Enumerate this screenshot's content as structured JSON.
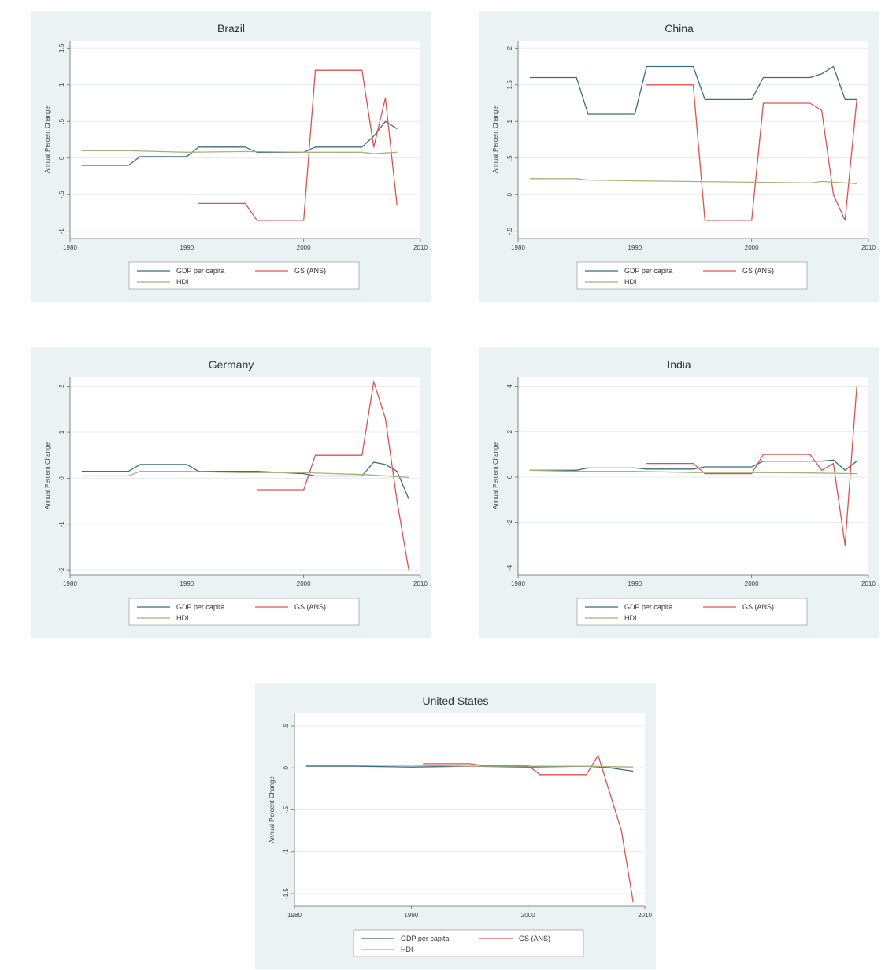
{
  "colors": {
    "gdp": "#3d6b80",
    "gs": "#d9534f",
    "hdi": "#a8b27a",
    "grid": "#e4ecec",
    "axis": "#666666"
  },
  "chart_data": [
    {
      "type": "line",
      "title": "Brazil",
      "xlabel": "",
      "ylabel": "Annual Percent Change",
      "xlim": [
        1980,
        2010
      ],
      "xticks": [
        1980,
        1990,
        2000,
        2010
      ],
      "ylim": [
        -1.1,
        1.6
      ],
      "yticks": [
        1.5,
        1,
        0.5,
        0,
        -0.5,
        -1
      ],
      "ytick_labels": [
        "1.5",
        "1",
        ".5",
        "0",
        "-.5",
        "-1"
      ],
      "grid": true,
      "legend": "bottom",
      "series": [
        {
          "name": "GDP per capita",
          "key": "gdp",
          "x": [
            1981,
            1985,
            1986,
            1990,
            1991,
            1995,
            1996,
            2000,
            2001,
            2005,
            2006,
            2007,
            2008
          ],
          "y": [
            -0.1,
            -0.1,
            0.02,
            0.02,
            0.15,
            0.15,
            0.08,
            0.08,
            0.15,
            0.15,
            0.3,
            0.5,
            0.4
          ]
        },
        {
          "name": "GS (ANS)",
          "key": "gs",
          "x": [
            1991,
            1995,
            1996,
            2000,
            2001,
            2005,
            2006,
            2007,
            2008
          ],
          "y": [
            -0.62,
            -0.62,
            -0.85,
            -0.85,
            1.2,
            1.2,
            0.15,
            0.82,
            -0.65
          ]
        },
        {
          "name": "HDI",
          "key": "hdi",
          "x": [
            1981,
            1985,
            1990,
            1995,
            2000,
            2005,
            2006,
            2007,
            2008
          ],
          "y": [
            0.1,
            0.1,
            0.08,
            0.09,
            0.08,
            0.08,
            0.06,
            0.07,
            0.08
          ]
        }
      ]
    },
    {
      "type": "line",
      "title": "China",
      "xlabel": "",
      "ylabel": "Annual Percent Change",
      "xlim": [
        1980,
        2010
      ],
      "xticks": [
        1980,
        1990,
        2000,
        2010
      ],
      "ylim": [
        -0.6,
        2.1
      ],
      "yticks": [
        2,
        1.5,
        1,
        0.5,
        0,
        -0.5
      ],
      "ytick_labels": [
        "2",
        "1.5",
        "1",
        ".5",
        "0",
        "-.5"
      ],
      "grid": true,
      "legend": "bottom",
      "series": [
        {
          "name": "GDP per capita",
          "key": "gdp",
          "x": [
            1981,
            1985,
            1986,
            1990,
            1991,
            1995,
            1996,
            2000,
            2001,
            2005,
            2006,
            2007,
            2008,
            2009
          ],
          "y": [
            1.6,
            1.6,
            1.1,
            1.1,
            1.75,
            1.75,
            1.3,
            1.3,
            1.6,
            1.6,
            1.65,
            1.75,
            1.3,
            1.3
          ]
        },
        {
          "name": "GS (ANS)",
          "key": "gs",
          "x": [
            1991,
            1995,
            1996,
            2000,
            2001,
            2005,
            2006,
            2007,
            2008,
            2009
          ],
          "y": [
            1.5,
            1.5,
            -0.35,
            -0.35,
            1.25,
            1.25,
            1.15,
            0.0,
            -0.35,
            1.3
          ]
        },
        {
          "name": "HDI",
          "key": "hdi",
          "x": [
            1981,
            1985,
            1986,
            1990,
            1995,
            2000,
            2005,
            2006,
            2007,
            2009
          ],
          "y": [
            0.22,
            0.22,
            0.2,
            0.19,
            0.18,
            0.17,
            0.16,
            0.18,
            0.17,
            0.15
          ]
        }
      ]
    },
    {
      "type": "line",
      "title": "Germany",
      "xlabel": "",
      "ylabel": "Annual Percent Change",
      "xlim": [
        1980,
        2010
      ],
      "xticks": [
        1980,
        1990,
        2000,
        2010
      ],
      "ylim": [
        -2.1,
        2.2
      ],
      "yticks": [
        2,
        1,
        0,
        -1,
        -2
      ],
      "ytick_labels": [
        "2",
        "1",
        "0",
        "-1",
        "-2"
      ],
      "grid": true,
      "legend": "bottom",
      "series": [
        {
          "name": "GDP per capita",
          "key": "gdp",
          "x": [
            1981,
            1985,
            1986,
            1990,
            1991,
            1995,
            1996,
            2000,
            2001,
            2005,
            2006,
            2007,
            2008,
            2009
          ],
          "y": [
            0.15,
            0.15,
            0.3,
            0.3,
            0.15,
            0.15,
            0.15,
            0.1,
            0.05,
            0.05,
            0.35,
            0.3,
            0.15,
            -0.45
          ]
        },
        {
          "name": "GS (ANS)",
          "key": "gs",
          "x": [
            1996,
            2000,
            2001,
            2005,
            2006,
            2007,
            2008,
            2009
          ],
          "y": [
            -0.25,
            -0.25,
            0.5,
            0.5,
            2.1,
            1.3,
            -0.5,
            -2.0
          ]
        },
        {
          "name": "HDI",
          "key": "hdi",
          "x": [
            1981,
            1985,
            1986,
            1990,
            1995,
            2000,
            2005,
            2009
          ],
          "y": [
            0.05,
            0.05,
            0.15,
            0.15,
            0.12,
            0.12,
            0.08,
            0.02
          ]
        }
      ]
    },
    {
      "type": "line",
      "title": "India",
      "xlabel": "",
      "ylabel": "Annual Percent Change",
      "xlim": [
        1980,
        2010
      ],
      "xticks": [
        1980,
        1990,
        2000,
        2010
      ],
      "ylim": [
        -4.3,
        4.4
      ],
      "yticks": [
        4,
        2,
        0,
        -2,
        -4
      ],
      "ytick_labels": [
        "4",
        "2",
        "0",
        "-2",
        "-4"
      ],
      "grid": true,
      "legend": "bottom",
      "series": [
        {
          "name": "GDP per capita",
          "key": "gdp",
          "x": [
            1981,
            1985,
            1986,
            1990,
            1991,
            1995,
            1996,
            2000,
            2001,
            2005,
            2006,
            2007,
            2008,
            2009
          ],
          "y": [
            0.3,
            0.3,
            0.4,
            0.4,
            0.35,
            0.35,
            0.45,
            0.45,
            0.7,
            0.7,
            0.7,
            0.75,
            0.3,
            0.7
          ]
        },
        {
          "name": "GS (ANS)",
          "key": "gs",
          "x": [
            1991,
            1995,
            1996,
            2000,
            2001,
            2005,
            2006,
            2007,
            2008,
            2009
          ],
          "y": [
            0.6,
            0.6,
            0.15,
            0.15,
            1.0,
            1.0,
            0.3,
            0.6,
            -3.0,
            4.0
          ]
        },
        {
          "name": "HDI",
          "key": "hdi",
          "x": [
            1981,
            1985,
            1990,
            1995,
            2000,
            2005,
            2009
          ],
          "y": [
            0.3,
            0.25,
            0.25,
            0.2,
            0.2,
            0.18,
            0.15
          ]
        }
      ]
    },
    {
      "type": "line",
      "title": "United States",
      "xlabel": "",
      "ylabel": "Annual Percent Change",
      "xlim": [
        1980,
        2010
      ],
      "xticks": [
        1980,
        1990,
        2000,
        2010
      ],
      "ylim": [
        -1.65,
        0.65
      ],
      "yticks": [
        0.5,
        0,
        -0.5,
        -1,
        -1.5
      ],
      "ytick_labels": [
        ".5",
        "0",
        "-.5",
        "-1",
        "-1.5"
      ],
      "grid": true,
      "legend": "bottom",
      "series": [
        {
          "name": "GDP per capita",
          "key": "gdp",
          "x": [
            1981,
            1985,
            1990,
            1995,
            2000,
            2005,
            2007,
            2008,
            2009
          ],
          "y": [
            0.02,
            0.02,
            0.01,
            0.02,
            0.01,
            0.02,
            0.0,
            -0.02,
            -0.04
          ]
        },
        {
          "name": "GS (ANS)",
          "key": "gs",
          "x": [
            1991,
            1995,
            1996,
            2000,
            2001,
            2005,
            2006,
            2007,
            2008,
            2009
          ],
          "y": [
            0.05,
            0.05,
            0.03,
            0.03,
            -0.08,
            -0.08,
            0.15,
            -0.3,
            -0.75,
            -1.6
          ]
        },
        {
          "name": "HDI",
          "key": "hdi",
          "x": [
            1981,
            1985,
            1990,
            1995,
            2000,
            2005,
            2009
          ],
          "y": [
            0.03,
            0.03,
            0.03,
            0.02,
            0.02,
            0.02,
            0.01
          ]
        }
      ]
    }
  ]
}
